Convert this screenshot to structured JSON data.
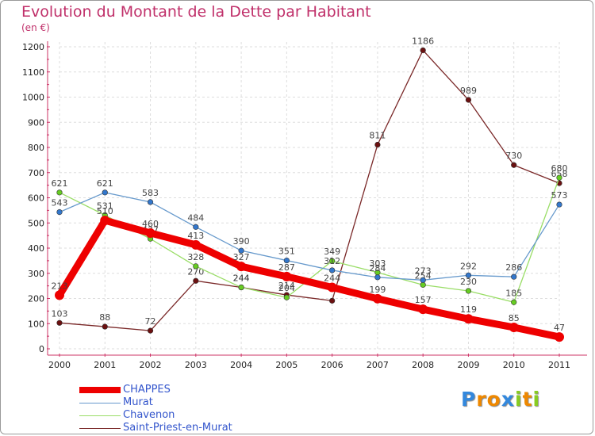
{
  "chart_data": {
    "type": "line",
    "title": "Evolution du Montant de la Dette par Habitant",
    "subtitle": "(en €)",
    "x": [
      "2000",
      "2001",
      "2002",
      "2003",
      "2004",
      "2005",
      "2006",
      "2007",
      "2008",
      "2009",
      "2010",
      "2011"
    ],
    "ylim": [
      0,
      1200
    ],
    "yticks": [
      0,
      100,
      200,
      300,
      400,
      500,
      600,
      700,
      800,
      900,
      1000,
      1100,
      1200
    ],
    "grid": true,
    "legend_position": "bottom-left",
    "series": [
      {
        "name": "Saint-Priest-en-Murat",
        "color": "#7a2828",
        "marker": "#6b1010",
        "values": [
          103,
          88,
          72,
          270,
          244,
          214,
          191,
          811,
          1186,
          989,
          730,
          658
        ],
        "labels": [
          "103",
          "88",
          "72",
          "270",
          "244",
          "214",
          "",
          "811",
          "1186",
          "989",
          "730",
          "658"
        ]
      },
      {
        "name": "Chavenon",
        "color": "#99dd66",
        "marker": "#66cc22",
        "values": [
          621,
          531,
          437,
          328,
          244,
          204,
          349,
          303,
          254,
          230,
          185,
          680
        ],
        "labels": [
          "621",
          "531",
          "437",
          "328",
          "244",
          "204",
          "349",
          "303",
          "254",
          "230",
          "185",
          "680"
        ]
      },
      {
        "name": "Murat",
        "color": "#6699cc",
        "marker": "#3377cc",
        "values": [
          543,
          621,
          583,
          484,
          390,
          351,
          312,
          284,
          273,
          292,
          286,
          573
        ],
        "labels": [
          "543",
          "621",
          "583",
          "484",
          "390",
          "351",
          "312",
          "284",
          "273",
          "292",
          "286",
          "573"
        ]
      },
      {
        "name": "CHAPPES",
        "color": "#ee0000",
        "marker": "#ee0000",
        "values": [
          213,
          510,
          460,
          413,
          327,
          287,
          244,
          199,
          157,
          119,
          85,
          47
        ],
        "labels": [
          "213",
          "510",
          "460",
          "413",
          "327",
          "287",
          "244",
          "199",
          "157",
          "119",
          "85",
          "47"
        ],
        "bold": true
      }
    ]
  },
  "legend": [
    {
      "label": "CHAPPES",
      "color": "#ee0000"
    },
    {
      "label": "Murat",
      "color": "#6699cc"
    },
    {
      "label": "Chavenon",
      "color": "#99dd66"
    },
    {
      "label": "Saint-Priest-en-Murat",
      "color": "#7a2828"
    }
  ],
  "logo": {
    "letters": [
      "P",
      "r",
      "o",
      "x",
      "i",
      "t",
      "i"
    ],
    "colors": [
      "#3388dd",
      "#ee8800",
      "#ee8800",
      "#3388dd",
      "#88cc22",
      "#ee8800",
      "#88cc22"
    ]
  }
}
